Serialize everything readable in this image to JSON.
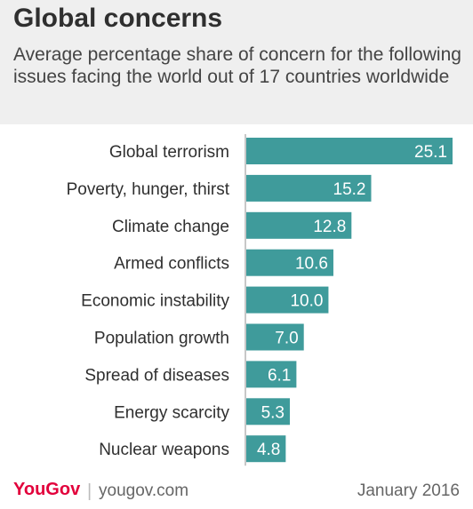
{
  "header": {
    "title": "Global concerns",
    "subtitle": "Average percentage share of concern for the following issues facing the world out of 17 countries worldwide"
  },
  "footer": {
    "brand": "YouGov",
    "separator": "|",
    "url": "yougov.com",
    "date": "January 2016"
  },
  "colors": {
    "bar": "#3f9b9b",
    "axis": "#b5b5b5",
    "label_on_bar": "#ffffff",
    "brand": "#e2003b"
  },
  "chart_data": {
    "type": "bar",
    "orientation": "horizontal",
    "categories": [
      "Global terrorism",
      "Poverty, hunger,  thirst",
      "Climate change",
      "Armed conflicts",
      "Economic instability",
      "Population growth",
      "Spread of diseases",
      "Energy scarcity",
      "Nuclear weapons"
    ],
    "values": [
      25.1,
      15.2,
      12.8,
      10.6,
      10.0,
      7.0,
      6.1,
      5.3,
      4.8
    ],
    "value_labels": [
      "25.1",
      "15.2",
      "12.8",
      "10.6",
      "10.0",
      "7.0",
      "6.1",
      "5.3",
      "4.8"
    ],
    "xlim": [
      0,
      25.1
    ],
    "grid": false,
    "legend": "none"
  }
}
